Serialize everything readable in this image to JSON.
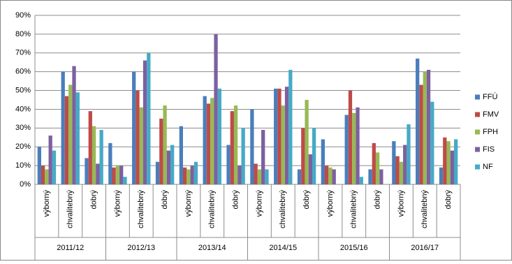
{
  "chart_data": {
    "type": "bar",
    "categories": [
      "výborný",
      "chvalitebný",
      "dobrý",
      "výborný",
      "chvalitebný",
      "dobrý",
      "výborný",
      "chvalitebný",
      "dobrý",
      "výborný",
      "chvalitebný",
      "dobrý",
      "výborný",
      "chvalitebný",
      "dobrý",
      "výborný",
      "chvalitebný",
      "dobrý"
    ],
    "groups": [
      "2011/12",
      "2012/13",
      "2013/14",
      "2014/15",
      "2015/16",
      "2016/17"
    ],
    "series": [
      {
        "name": "FFÚ",
        "color": "#4a7ebb",
        "values": [
          20,
          60,
          14,
          22,
          60,
          12,
          31,
          47,
          21,
          40,
          51,
          8,
          24,
          37,
          8,
          23,
          67,
          9
        ]
      },
      {
        "name": "FMV",
        "color": "#be4b48",
        "values": [
          10,
          47,
          39,
          9,
          50,
          35,
          9,
          43,
          39,
          11,
          51,
          30,
          10,
          50,
          22,
          15,
          53,
          25
        ]
      },
      {
        "name": "FPH",
        "color": "#98b954",
        "values": [
          8,
          53,
          31,
          10,
          41,
          42,
          8,
          46,
          42,
          8,
          42,
          45,
          9,
          38,
          17,
          12,
          60,
          23
        ]
      },
      {
        "name": "FIS",
        "color": "#7d60a0",
        "values": [
          26,
          63,
          11,
          10,
          66,
          18,
          10,
          80,
          10,
          29,
          52,
          16,
          8,
          41,
          8,
          21,
          61,
          18
        ]
      },
      {
        "name": "NF",
        "color": "#46aac5",
        "values": [
          18,
          49,
          29,
          4,
          70,
          21,
          12,
          51,
          30,
          8,
          61,
          30,
          0,
          4,
          0,
          32,
          44,
          24
        ]
      }
    ],
    "ylim": [
      0,
      90
    ],
    "yticks": [
      {
        "value": 0,
        "label": "0%"
      },
      {
        "value": 10,
        "label": "10%"
      },
      {
        "value": 20,
        "label": "20%"
      },
      {
        "value": 30,
        "label": "30%"
      },
      {
        "value": 40,
        "label": "40%"
      },
      {
        "value": 50,
        "label": "50%"
      },
      {
        "value": 60,
        "label": "60%"
      },
      {
        "value": 70,
        "label": "70%"
      },
      {
        "value": 80,
        "label": "80%"
      },
      {
        "value": 90,
        "label": "90%"
      }
    ],
    "grid": true,
    "legend": "right"
  }
}
